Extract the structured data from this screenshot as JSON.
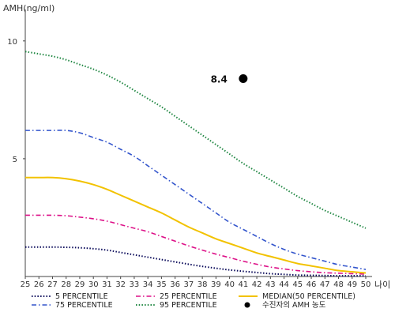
{
  "chart_data": {
    "type": "line",
    "ylabel": "AMH(ng/ml)",
    "xlabel": "나이",
    "xlim": [
      25,
      50
    ],
    "ylim": [
      0,
      11
    ],
    "x_ticks": [
      25,
      26,
      27,
      28,
      29,
      30,
      31,
      32,
      33,
      34,
      35,
      36,
      37,
      38,
      39,
      40,
      41,
      42,
      43,
      44,
      45,
      46,
      47,
      48,
      49,
      50
    ],
    "y_ticks": [
      5,
      10
    ],
    "grid": false,
    "legend_position": "bottom",
    "x": [
      25,
      26,
      27,
      28,
      29,
      30,
      31,
      32,
      33,
      34,
      35,
      36,
      37,
      38,
      39,
      40,
      41,
      42,
      43,
      44,
      45,
      46,
      47,
      48,
      49,
      50
    ],
    "series": [
      {
        "name": "5 PERCENTILE",
        "color": "#0a0a5a",
        "dash": "dotted",
        "values": [
          1.25,
          1.25,
          1.25,
          1.24,
          1.22,
          1.18,
          1.12,
          1.02,
          0.92,
          0.82,
          0.72,
          0.62,
          0.52,
          0.43,
          0.35,
          0.28,
          0.22,
          0.17,
          0.12,
          0.09,
          0.06,
          0.05,
          0.04,
          0.03,
          0.03,
          0.03
        ]
      },
      {
        "name": "75 PERCENTILE",
        "color": "#3355cc",
        "dash": "dashdot",
        "values": [
          6.2,
          6.2,
          6.2,
          6.2,
          6.1,
          5.9,
          5.7,
          5.4,
          5.1,
          4.7,
          4.3,
          3.9,
          3.5,
          3.1,
          2.7,
          2.3,
          2.0,
          1.7,
          1.4,
          1.15,
          0.95,
          0.8,
          0.65,
          0.5,
          0.4,
          0.3
        ]
      },
      {
        "name": "25 PERCENTILE",
        "color": "#dd1188",
        "dash": "dashdot",
        "values": [
          2.6,
          2.6,
          2.6,
          2.58,
          2.52,
          2.45,
          2.35,
          2.2,
          2.05,
          1.9,
          1.7,
          1.5,
          1.3,
          1.12,
          0.95,
          0.8,
          0.65,
          0.52,
          0.4,
          0.32,
          0.25,
          0.2,
          0.16,
          0.14,
          0.12,
          0.1
        ]
      },
      {
        "name": "95 PERCENTILE",
        "color": "#228844",
        "dash": "dotted",
        "values": [
          9.55,
          9.45,
          9.35,
          9.2,
          9.0,
          8.8,
          8.55,
          8.25,
          7.9,
          7.55,
          7.2,
          6.8,
          6.4,
          6.0,
          5.6,
          5.2,
          4.8,
          4.45,
          4.1,
          3.75,
          3.4,
          3.1,
          2.8,
          2.55,
          2.3,
          2.05
        ]
      },
      {
        "name": "MEDIAN(50 PERCENTILE)",
        "color": "#f2c200",
        "dash": "solid",
        "values": [
          4.2,
          4.2,
          4.2,
          4.15,
          4.05,
          3.9,
          3.7,
          3.45,
          3.2,
          2.95,
          2.7,
          2.4,
          2.1,
          1.85,
          1.6,
          1.4,
          1.2,
          1.0,
          0.85,
          0.7,
          0.55,
          0.45,
          0.35,
          0.25,
          0.2,
          0.15
        ]
      }
    ],
    "highlight_point": {
      "name": "수진자의 AMH 농도",
      "x": 41,
      "y": 8.4,
      "label": "8.4",
      "color": "#000000"
    }
  }
}
